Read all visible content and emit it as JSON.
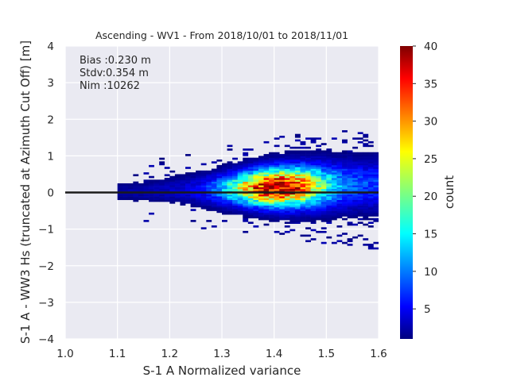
{
  "chart_data": {
    "type": "heatmap",
    "title": "Ascending - WV1 - From 2018/10/01 to 2018/11/01",
    "xlabel": "S-1 A Normalized variance",
    "ylabel": "S-1 A - WW3 Hs (truncated at Azimuth Cut Off) [m]",
    "xlim": [
      1.0,
      1.6
    ],
    "ylim": [
      -4,
      4
    ],
    "xticks": [
      "1.0",
      "1.1",
      "1.2",
      "1.3",
      "1.4",
      "1.5",
      "1.6"
    ],
    "yticks": [
      "−4",
      "−3",
      "−2",
      "−1",
      "0",
      "1",
      "2",
      "3",
      "4"
    ],
    "grid": true,
    "reference_line_y": 0,
    "colorbar": {
      "label": "count",
      "range": [
        1,
        40
      ],
      "ticks": [
        "5",
        "10",
        "15",
        "20",
        "25",
        "30",
        "35",
        "40"
      ],
      "colormap": "jet"
    },
    "stats": {
      "bias": "Bias :0.230 m",
      "stdv": "Stdv:0.354 m",
      "nim": "Nim :10262"
    },
    "density_model": {
      "x_bin_width": 0.01,
      "y_bin_width": 0.05,
      "x_start": 1.1,
      "x_end": 1.6,
      "mean_y_at_x_start": 0.0,
      "mean_y_at_x_end": 0.2,
      "sigma_y_at_x_start": 0.18,
      "sigma_y_at_x_end": 0.45,
      "peak_x": 1.4,
      "peak_count": 40
    }
  },
  "colors": {
    "plot_background": "#eaeaf2",
    "grid": "#ffffff",
    "reference_line": "#1a1a1a",
    "text": "#262626"
  }
}
